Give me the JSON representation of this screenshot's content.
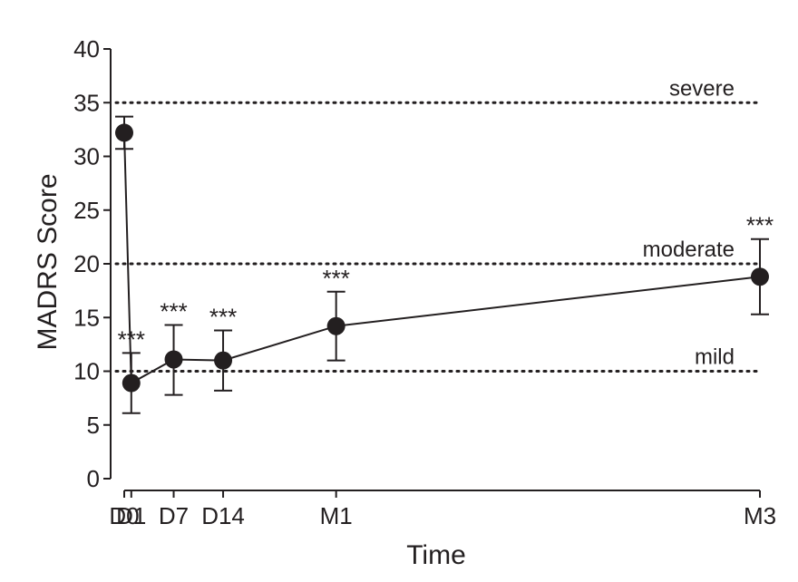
{
  "chart_data": {
    "type": "line",
    "xlabel": "Time",
    "ylabel": "MADRS Score",
    "ylim": [
      0,
      40
    ],
    "yticks": [
      0,
      5,
      10,
      15,
      20,
      25,
      30,
      35,
      40
    ],
    "x_days": [
      0,
      1,
      7,
      14,
      30,
      90
    ],
    "categories": [
      "D0",
      "D1",
      "D7",
      "D14",
      "M1",
      "M3"
    ],
    "series": [
      {
        "values": [
          32.2,
          8.9,
          11.1,
          11.0,
          14.2,
          18.8
        ],
        "error_low": [
          30.7,
          6.1,
          7.8,
          8.2,
          11.0,
          15.3
        ],
        "error_high": [
          33.7,
          11.7,
          14.3,
          13.8,
          17.4,
          22.3
        ],
        "significance": [
          "",
          "***",
          "***",
          "***",
          "***",
          "***"
        ],
        "color": "#231f20"
      }
    ],
    "reference_lines": [
      {
        "value": 35,
        "label": "severe"
      },
      {
        "value": 20,
        "label": "moderate"
      },
      {
        "value": 10,
        "label": "mild"
      }
    ],
    "grid": false
  }
}
